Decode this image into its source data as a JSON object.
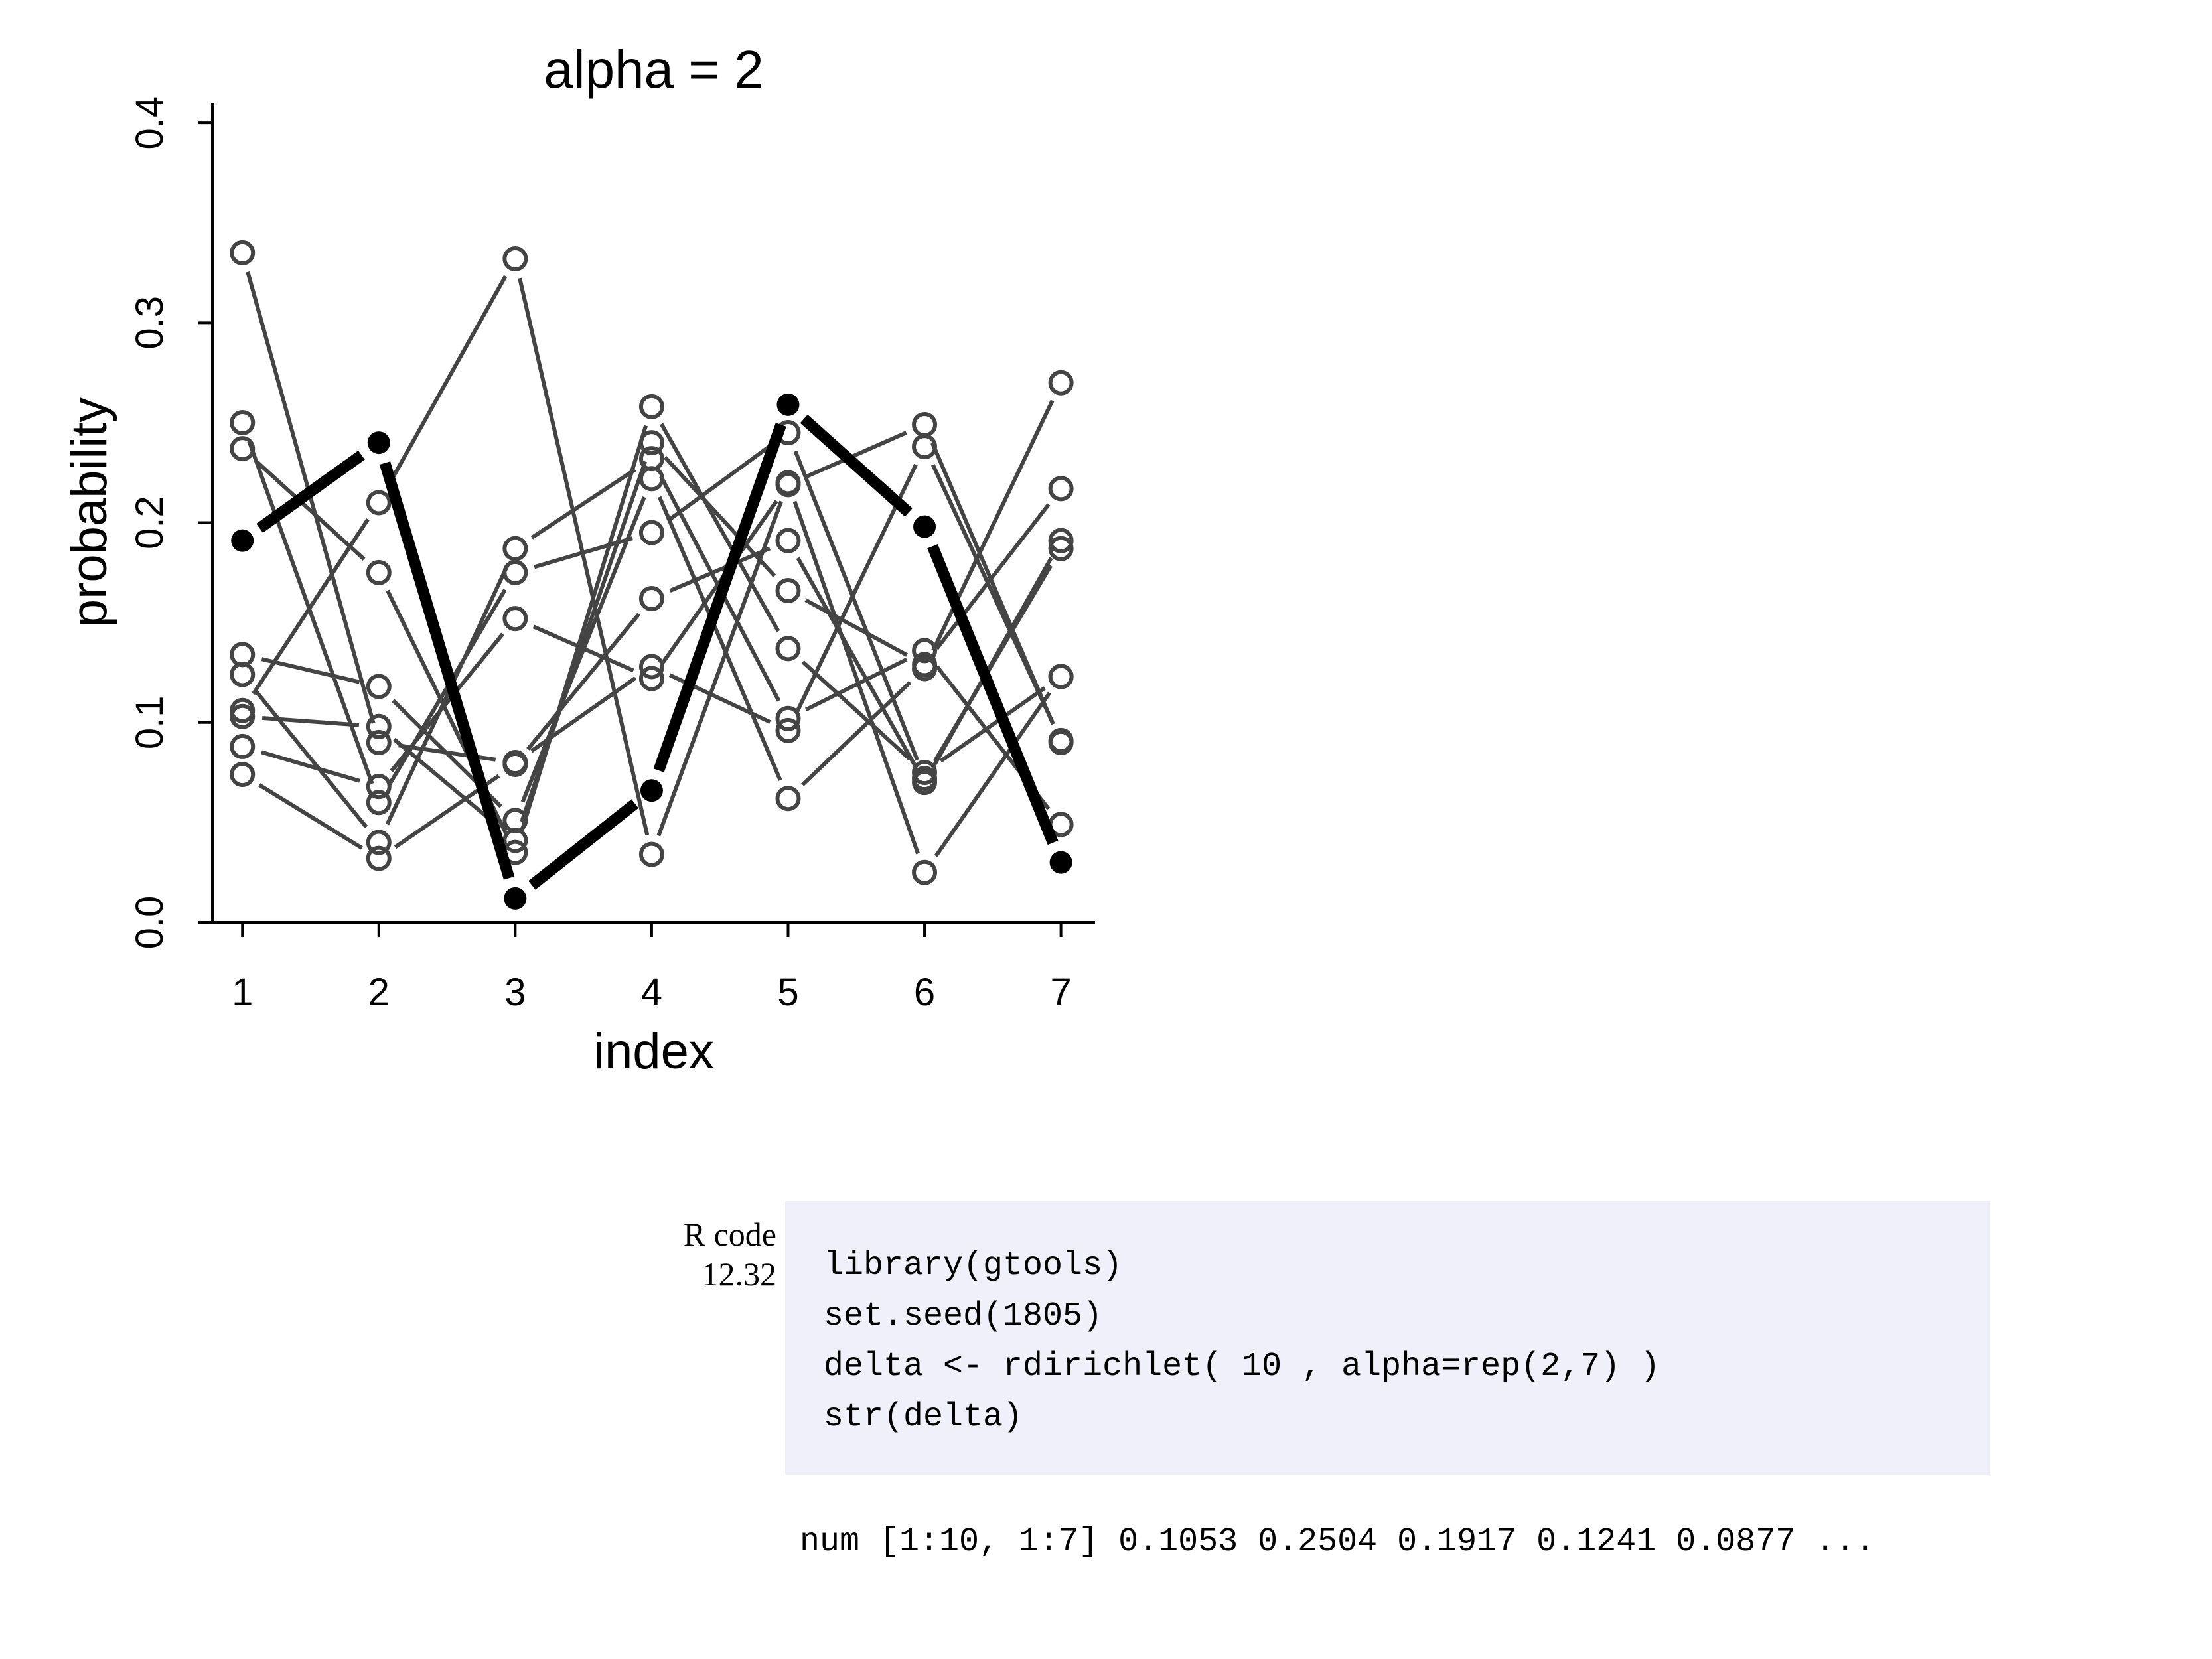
{
  "chart_data": {
    "type": "line",
    "title": "alpha = 2",
    "xlabel": "index",
    "ylabel": "probability",
    "x": [
      1,
      2,
      3,
      4,
      5,
      6,
      7
    ],
    "xticks": [
      "1",
      "2",
      "3",
      "4",
      "5",
      "6",
      "7"
    ],
    "yticks": [
      "0.0",
      "0.1",
      "0.2",
      "0.3",
      "0.4"
    ],
    "xlim": [
      0.78,
      7.25
    ],
    "ylim": [
      0,
      0.41
    ],
    "highlight_color": "#000000",
    "background_color": "#444444",
    "series": [
      {
        "values": [
          0.191,
          0.24,
          0.012,
          0.066,
          0.259,
          0.198,
          0.03
        ],
        "highlight": true
      },
      {
        "values": [
          0.335,
          0.09,
          0.08,
          0.128,
          0.096,
          0.238,
          0.091
        ]
      },
      {
        "values": [
          0.25,
          0.06,
          0.175,
          0.195,
          0.245,
          0.072,
          0.187
        ]
      },
      {
        "values": [
          0.237,
          0.175,
          0.035,
          0.258,
          0.137,
          0.075,
          0.123
        ]
      },
      {
        "values": [
          0.134,
          0.118,
          0.051,
          0.222,
          0.062,
          0.127,
          0.27
        ]
      },
      {
        "values": [
          0.124,
          0.04,
          0.187,
          0.232,
          0.102,
          0.136,
          0.049
        ]
      },
      {
        "values": [
          0.106,
          0.21,
          0.332,
          0.034,
          0.22,
          0.025,
          0.123
        ]
      },
      {
        "values": [
          0.103,
          0.098,
          0.041,
          0.24,
          0.166,
          0.129,
          0.217
        ]
      },
      {
        "values": [
          0.088,
          0.068,
          0.152,
          0.122,
          0.219,
          0.249,
          0.09
        ]
      },
      {
        "values": [
          0.074,
          0.032,
          0.079,
          0.162,
          0.191,
          0.07,
          0.191
        ]
      }
    ]
  },
  "code": {
    "label_line1": "R code",
    "label_line2": "12.32",
    "lines": [
      "library(gtools)",
      "set.seed(1805)",
      "delta <- rdirichlet( 10 , alpha=rep(2,7) )",
      "str(delta)"
    ],
    "output": "num [1:10, 1:7] 0.1053 0.2504 0.1917 0.1241 0.0877 ..."
  }
}
